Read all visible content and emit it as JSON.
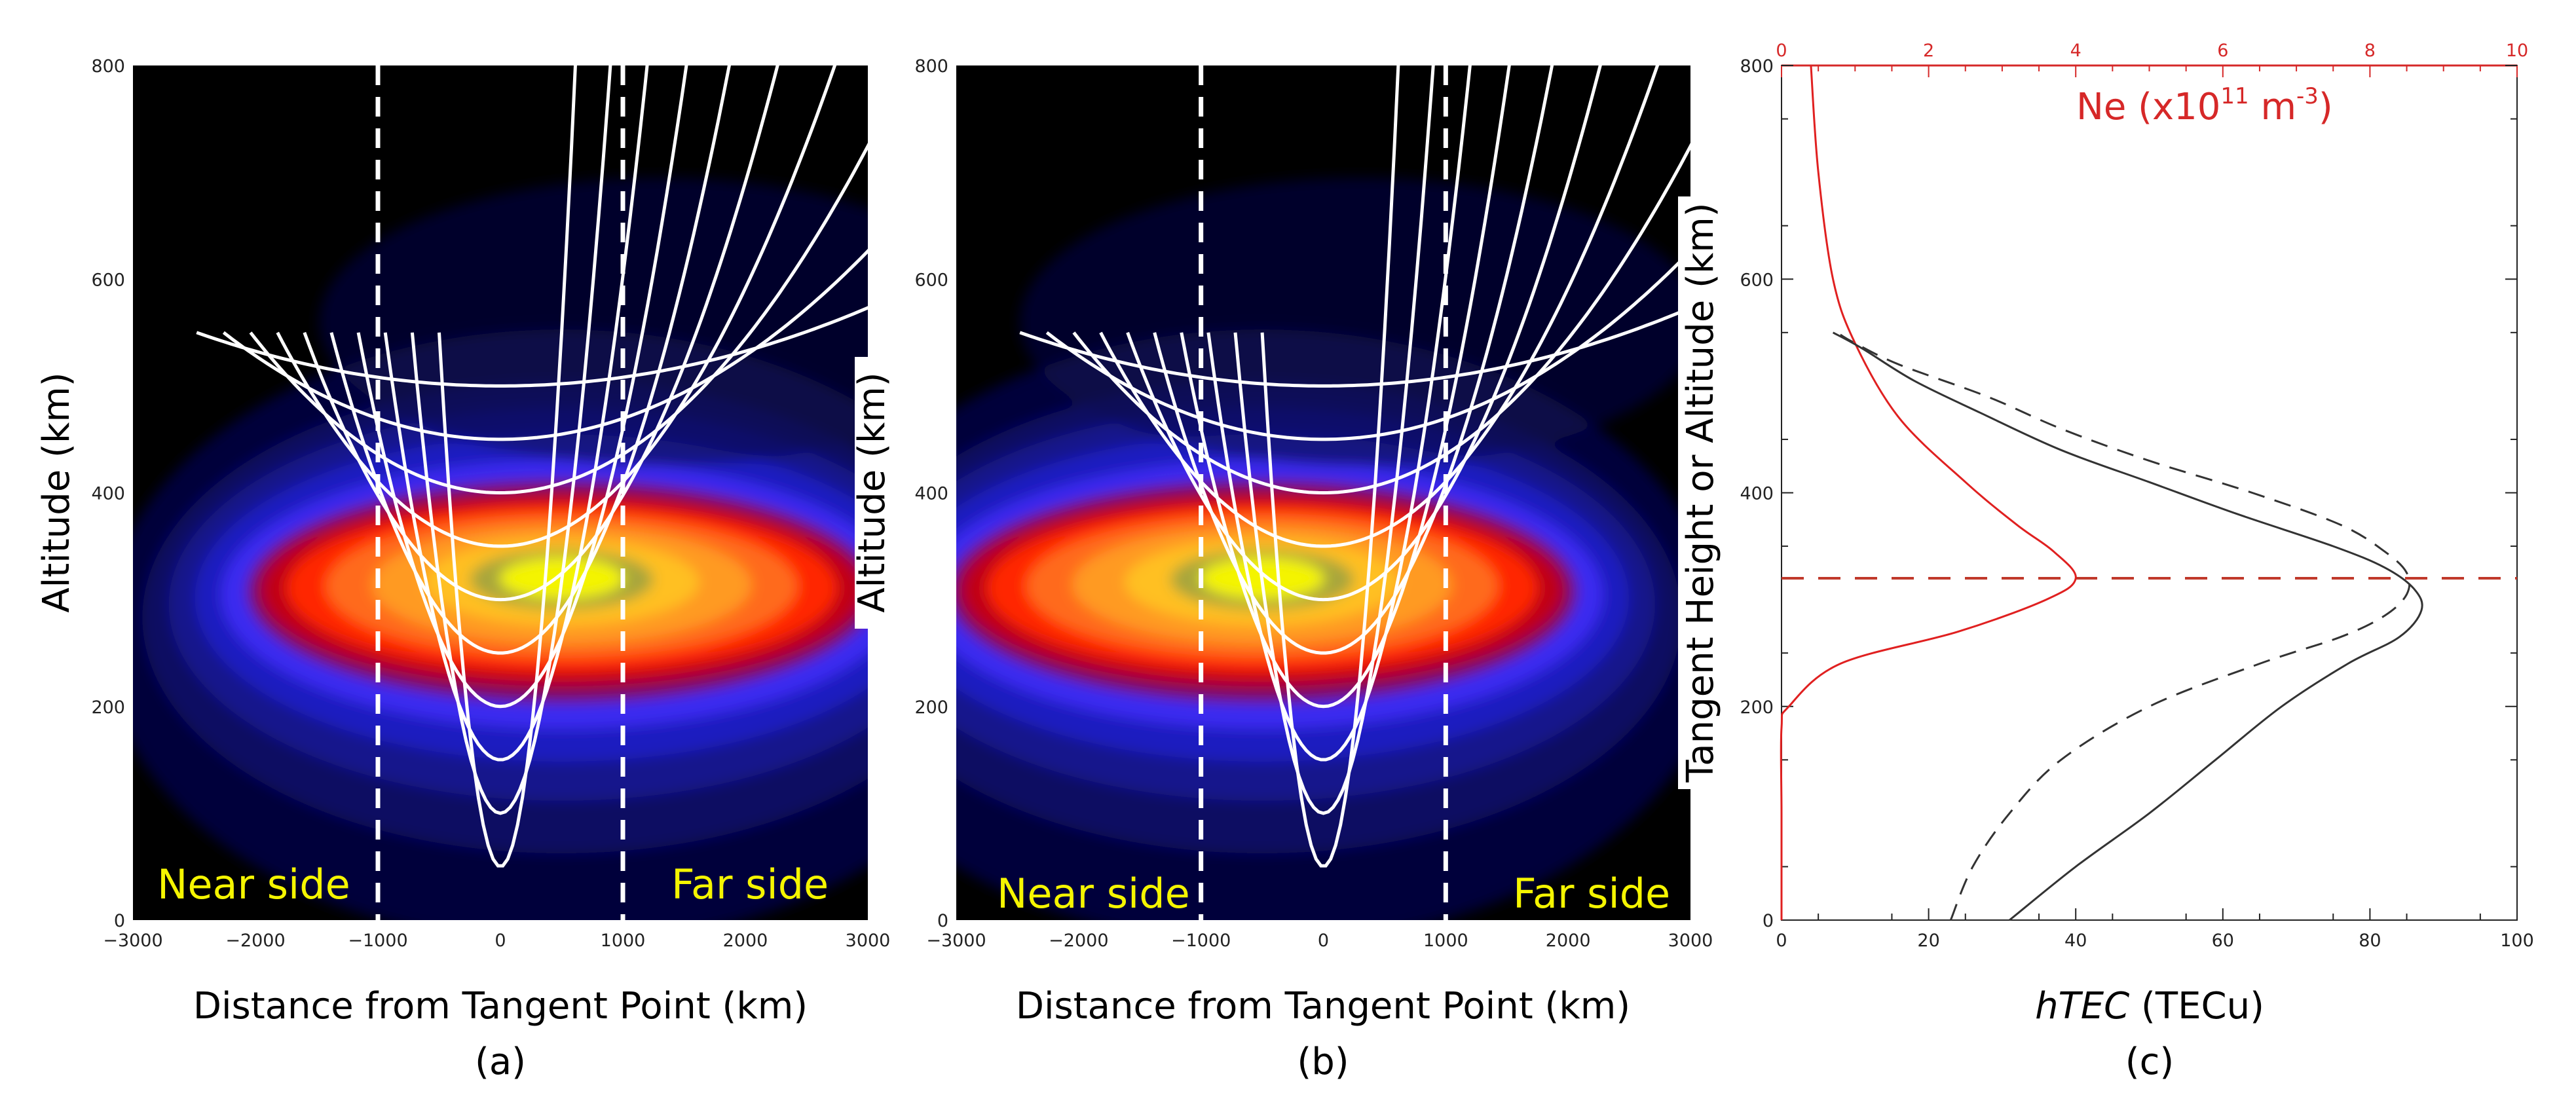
{
  "chart_data": [
    {
      "panel": "a",
      "type": "heatmap",
      "subtitle": "(a)",
      "xlabel": "Distance from Tangent Point (km)",
      "ylabel": "Altitude (km)",
      "xlim": [
        -3000,
        3000
      ],
      "ylim": [
        0,
        800
      ],
      "xticks": [
        -3000,
        -2000,
        -1000,
        0,
        1000,
        2000,
        3000
      ],
      "yticks": [
        0,
        200,
        400,
        600,
        800
      ],
      "peak": {
        "x": 500,
        "y": 320
      },
      "ray_tangent_heights": [
        50,
        100,
        150,
        200,
        250,
        300,
        350,
        400,
        450,
        500
      ],
      "ray_start_altitude": 550,
      "dashed_verticals": [
        -1000,
        1000
      ],
      "annotations": [
        "Near side",
        "Far side"
      ]
    },
    {
      "panel": "b",
      "type": "heatmap",
      "subtitle": "(b)",
      "xlabel": "Distance from Tangent Point (km)",
      "ylabel": "Altitude (km)",
      "xlim": [
        -3000,
        3000
      ],
      "ylim": [
        0,
        800
      ],
      "xticks": [
        -3000,
        -2000,
        -1000,
        0,
        1000,
        2000,
        3000
      ],
      "yticks": [
        0,
        200,
        400,
        600,
        800
      ],
      "peak": {
        "x": -500,
        "y": 320
      },
      "ray_tangent_heights": [
        50,
        100,
        150,
        200,
        250,
        300,
        350,
        400,
        450,
        500
      ],
      "ray_start_altitude": 550,
      "dashed_verticals": [
        -1000,
        1000
      ],
      "annotations": [
        "Near side",
        "Far side"
      ]
    },
    {
      "panel": "c",
      "type": "line",
      "subtitle": "(c)",
      "xlabel_italic": "hTEC",
      "xlabel_rest": " (TECu)",
      "ylabel": "Tangent Height or Altitude (km)",
      "top_label": "Ne (x10",
      "top_label_exp1": "11",
      "top_label_mid": " m",
      "top_label_exp2": "-3",
      "top_label_end": ")",
      "xlim": [
        0,
        100
      ],
      "xticks": [
        0,
        20,
        40,
        60,
        80,
        100
      ],
      "top_xlim": [
        0,
        10
      ],
      "top_xticks": [
        0,
        2,
        4,
        6,
        8,
        10
      ],
      "ylim": [
        0,
        800
      ],
      "yticks": [
        0,
        200,
        400,
        600,
        800
      ],
      "hline": 320,
      "series": [
        {
          "name": "hTEC solid",
          "style": "solid",
          "points": [
            [
              31,
              0
            ],
            [
              40,
              50
            ],
            [
              50,
              100
            ],
            [
              59,
              150
            ],
            [
              68,
              200
            ],
            [
              77,
              240
            ],
            [
              84,
              265
            ],
            [
              87,
              290
            ],
            [
              86,
              310
            ],
            [
              82,
              330
            ],
            [
              75,
              350
            ],
            [
              62,
              380
            ],
            [
              50,
              410
            ],
            [
              38,
              440
            ],
            [
              27,
              475
            ],
            [
              18,
              505
            ],
            [
              11,
              535
            ],
            [
              7,
              550
            ]
          ]
        },
        {
          "name": "hTEC dashed",
          "style": "dashed",
          "points": [
            [
              23,
              0
            ],
            [
              26,
              50
            ],
            [
              31,
              100
            ],
            [
              38,
              150
            ],
            [
              50,
              200
            ],
            [
              65,
              240
            ],
            [
              76,
              265
            ],
            [
              82,
              285
            ],
            [
              85,
              305
            ],
            [
              85,
              325
            ],
            [
              82,
              345
            ],
            [
              76,
              370
            ],
            [
              64,
              400
            ],
            [
              50,
              430
            ],
            [
              38,
              460
            ],
            [
              28,
              490
            ],
            [
              16,
              520
            ],
            [
              10,
              540
            ],
            [
              8,
              548
            ]
          ]
        },
        {
          "name": "Ne profile",
          "style": "solid-red",
          "axis": "top",
          "points": [
            [
              0,
              0
            ],
            [
              0,
              100
            ],
            [
              0,
              180
            ],
            [
              0.1,
              200
            ],
            [
              0.8,
              240
            ],
            [
              2.4,
              270
            ],
            [
              3.6,
              300
            ],
            [
              4,
              320
            ],
            [
              3.7,
              345
            ],
            [
              3.2,
              370
            ],
            [
              2.5,
              410
            ],
            [
              1.6,
              470
            ],
            [
              1.0,
              540
            ],
            [
              0.7,
              600
            ],
            [
              0.5,
              700
            ],
            [
              0.4,
              800
            ]
          ]
        }
      ]
    }
  ]
}
